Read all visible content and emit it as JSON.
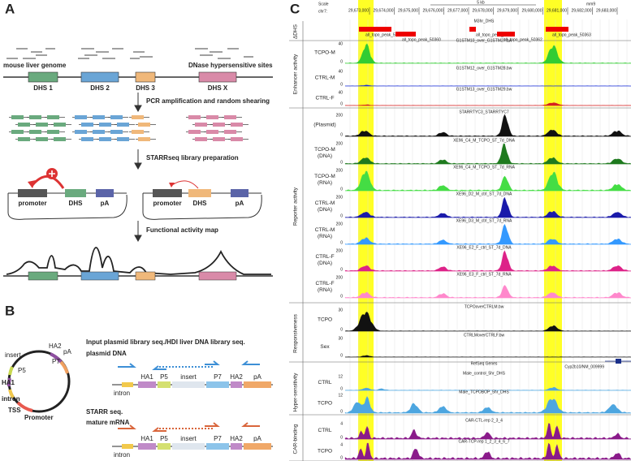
{
  "panel_a": {
    "label": "A",
    "genome_label": "mouse liver genome",
    "sites_label": "DNase hypersensitive sites",
    "dhs": [
      "DHS 1",
      "DHS 2",
      "DHS 3",
      "DHS X"
    ],
    "steps": [
      "PCR amplification and random shearing",
      "STARRseq library preparation",
      "Functional activity map"
    ],
    "construct_left": [
      "promoter",
      "DHS",
      "pA"
    ],
    "construct_right": [
      "promoter",
      "DHS",
      "pA"
    ]
  },
  "panel_b": {
    "label": "B",
    "plasmid": [
      "HA2",
      "pA",
      "P7",
      "insert",
      "P5",
      "HA1",
      "intron",
      "TSS",
      "Promoter"
    ],
    "input_title": "Input plasmid library seq./HDI liver DNA library seq.",
    "input_subtitle": "plasmid DNA",
    "starr_title": "STARR seq.",
    "starr_subtitle": "mature mRNA",
    "construct_top": [
      "HA1",
      "P5",
      "insert",
      "P7",
      "HA2",
      "pA"
    ],
    "intron_top": "intron",
    "construct_bottom": [
      "HA1",
      "P5",
      "insert",
      "P7",
      "HA2",
      "pA"
    ],
    "intron_bottom": "intron"
  },
  "panel_c": {
    "label": "C",
    "scale": "Scale",
    "chrom": "chr7:",
    "scale_bar": "5 kb",
    "assembly": "mm9",
    "coordinates": [
      "29,673,000",
      "29,674,000",
      "29,675,000",
      "29,676,000",
      "29,677,000",
      "29,678,000",
      "29,679,000",
      "29,680,000",
      "29,681,000",
      "29,682,000",
      "29,683,000"
    ],
    "dhs_track": "M3hr_DHS",
    "peaks": [
      "all_topo_peak_50359",
      "all_topo_peak_50360",
      "all_topo_peak_50361",
      "all_topo_peak_50362",
      "all_topo_peak_50363"
    ],
    "groups": [
      "ΔDHS",
      "Enhancer activity",
      "Reporter activity",
      "Responsiveness",
      "Hyper-sensitivity",
      "CAR-binding"
    ],
    "tracks": [
      {
        "label": [
          "TCPO-M"
        ],
        "name": "G1STM10_over_G1STM27.bw",
        "max": 40,
        "min": 0
      },
      {
        "label": [
          "CTRL-M"
        ],
        "name": "G1STM12_over_G1STM28.bw",
        "max": 40,
        "min": 0
      },
      {
        "label": [
          "CTRL-F"
        ],
        "name": "G1STM13_over_G1STM29.bw",
        "max": 40,
        "min": 0
      },
      {
        "label": [
          "(Plasmid)"
        ],
        "name": "STARRTYC3_STARRTYC7",
        "max": 200,
        "min": 0
      },
      {
        "label": [
          "TCPO-M",
          "(DNA)"
        ],
        "name": "XE96_C4_M_TCPO_ST_7d_DNA",
        "max": 200,
        "min": 0
      },
      {
        "label": [
          "TCPO-M",
          "(RNA)"
        ],
        "name": "XE96_C4_M_TCPO_ST_7d_RNA",
        "max": 200,
        "min": 0
      },
      {
        "label": [
          "CTRL-M",
          "(DNA)"
        ],
        "name": "XE96_D2_M_ctrl_ST_7d_DNA",
        "max": 200,
        "min": 0
      },
      {
        "label": [
          "CTRL-M",
          "(RNA)"
        ],
        "name": "XE96_D3_M_ctrl_ST_7d_RNA",
        "max": 200,
        "min": 0
      },
      {
        "label": [
          "CTRL-F",
          "(DNA)"
        ],
        "name": "XE96_E2_F_ctrl_ST_7d_DNA",
        "max": 200,
        "min": 0
      },
      {
        "label": [
          "CTRL-F",
          "(RNA)"
        ],
        "name": "XE96_E3_F_ctrl_ST_7d_RNA",
        "max": 200,
        "min": 0
      },
      {
        "label": [
          "TCPO"
        ],
        "name": "TCPOoverCTRLM.bw",
        "max": 30,
        "min": 0
      },
      {
        "label": [
          "Sex"
        ],
        "name": "CTRLMoverCTRLF.bw",
        "max": 30,
        "min": 0
      },
      {
        "label": [
          "CTRL"
        ],
        "name": "Male_control_5hr_DHS",
        "max": 12,
        "min": 0
      },
      {
        "label": [
          "TCPO"
        ],
        "name": "Male_TCPOBOP_5hr_DHS",
        "max": 12,
        "min": 0
      },
      {
        "label": [
          "CTRL"
        ],
        "name": "CAR-CTL-rep 2_3_4",
        "max": 4,
        "min": 0
      },
      {
        "label": [
          "TCPO"
        ],
        "name": "CAR-TCP-rep 1_2_3_4_6_7",
        "max": 4,
        "min": 0
      }
    ],
    "refseq": "RefSeq Genes",
    "gene": "Cyp2b10/NM_009999"
  }
}
